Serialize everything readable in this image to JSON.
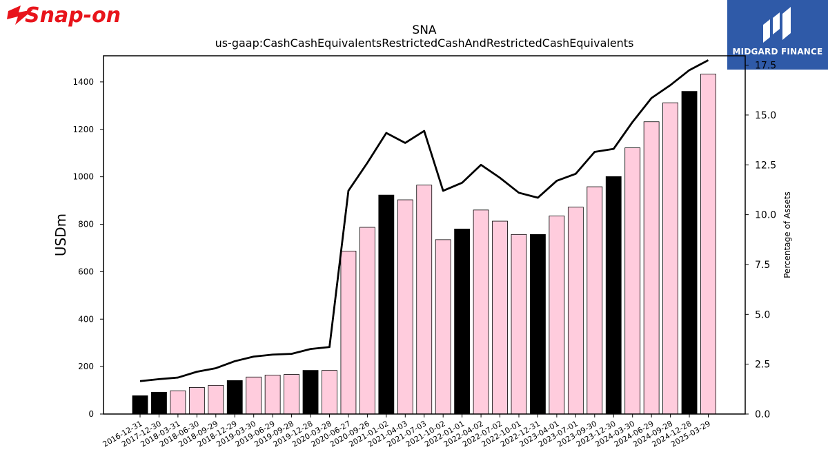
{
  "branding": {
    "company_logo_text": "Snap-on",
    "partner_logo_text": "MIDGARD FINANCE"
  },
  "colors": {
    "bar_highlight": "#000000",
    "bar_default": "#ffccdd",
    "line": "#000000",
    "brand_red": "#e8141b",
    "partner_blue": "#2f5aa8"
  },
  "chart_data": {
    "type": "bar",
    "title": "SNA",
    "subtitle": "us-gaap:CashCashEquivalentsRestrictedCashAndRestrictedCashEquivalents",
    "ylabel": "USDm",
    "y2label": "Percentage of Assets",
    "ylim": [
      0,
      1510
    ],
    "y2lim": [
      0,
      17.97
    ],
    "yticks": [
      0,
      200,
      400,
      600,
      800,
      1000,
      1200,
      1400
    ],
    "y2ticks": [
      "0.0",
      "2.5",
      "5.0",
      "7.5",
      "10.0",
      "12.5",
      "15.0",
      "17.5"
    ],
    "categories": [
      "2016-12-31",
      "2017-12-30",
      "2018-03-31",
      "2018-06-30",
      "2018-09-29",
      "2018-12-29",
      "2019-03-30",
      "2019-06-29",
      "2019-09-28",
      "2019-12-28",
      "2020-03-28",
      "2020-06-27",
      "2020-09-26",
      "2021-01-02",
      "2021-04-03",
      "2021-07-03",
      "2021-10-02",
      "2022-01-01",
      "2022-04-02",
      "2022-07-02",
      "2022-10-01",
      "2022-12-31",
      "2023-04-01",
      "2023-07-01",
      "2023-09-30",
      "2023-12-30",
      "2024-03-30",
      "2024-06-29",
      "2024-09-28",
      "2024-12-28",
      "2025-03-29"
    ],
    "series": [
      {
        "type": "bar",
        "values": [
          77,
          92,
          98,
          112,
          121,
          141,
          156,
          164,
          167,
          184,
          184,
          687,
          787,
          923,
          903,
          965,
          735,
          780,
          860,
          813,
          757,
          757,
          835,
          872,
          958,
          1001,
          1122,
          1232,
          1312,
          1360,
          1433
        ],
        "highlight": [
          true,
          true,
          false,
          false,
          false,
          true,
          false,
          false,
          false,
          true,
          false,
          false,
          false,
          true,
          false,
          false,
          false,
          true,
          false,
          false,
          false,
          true,
          false,
          false,
          false,
          true,
          false,
          false,
          false,
          true,
          false
        ]
      },
      {
        "type": "line",
        "axis": "right",
        "values": [
          1.65,
          1.75,
          1.83,
          2.12,
          2.3,
          2.65,
          2.88,
          2.98,
          3.02,
          3.26,
          3.36,
          11.2,
          12.6,
          14.1,
          13.6,
          14.2,
          11.2,
          11.6,
          12.5,
          11.85,
          11.1,
          10.85,
          11.7,
          12.05,
          13.15,
          13.3,
          14.65,
          15.85,
          16.5,
          17.25,
          17.75
        ]
      }
    ]
  }
}
